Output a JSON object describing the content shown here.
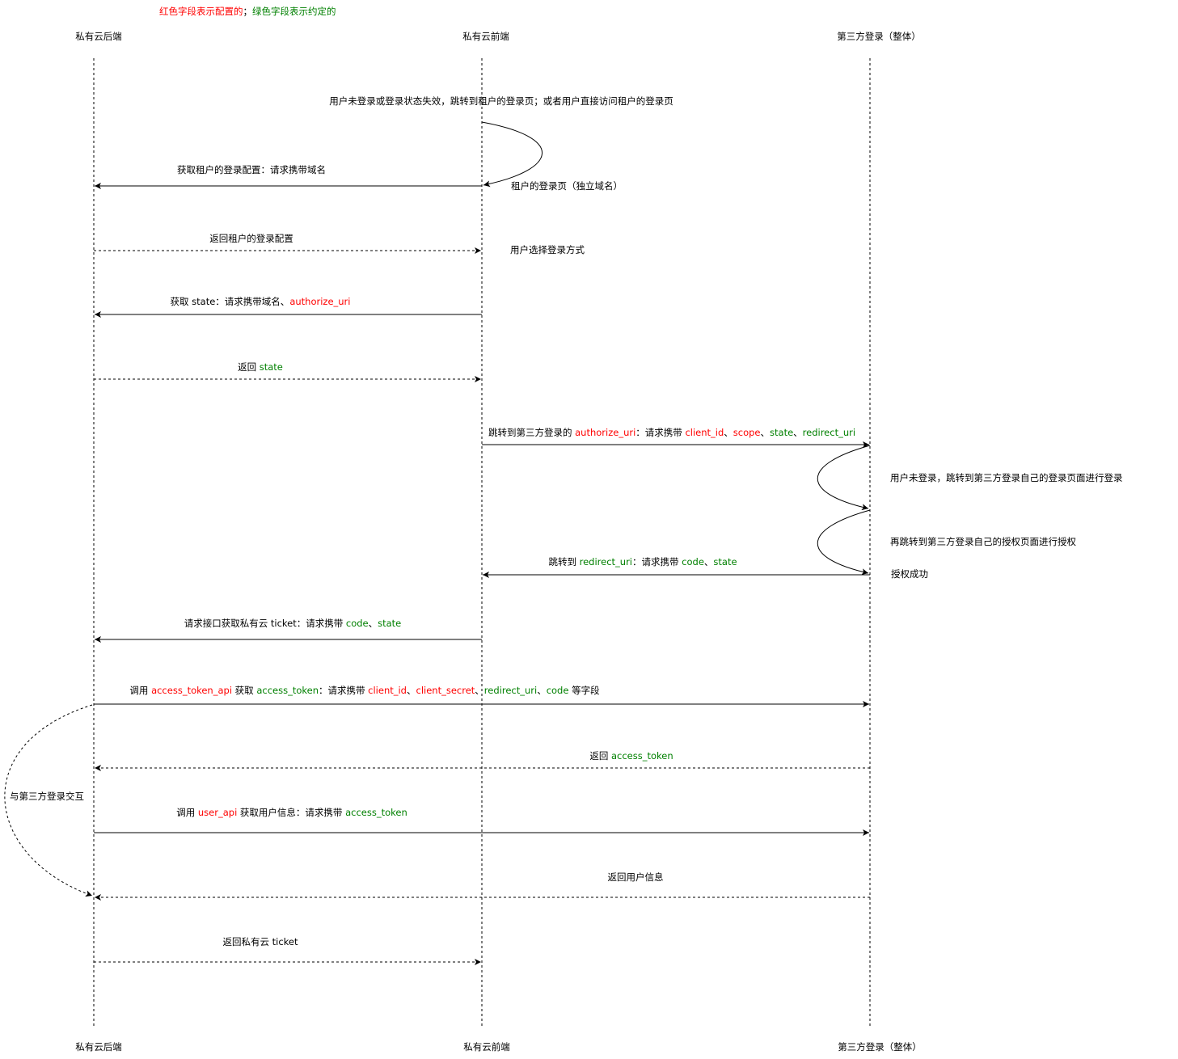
{
  "colors": {
    "config": "#ff0000",
    "agreed": "#008000",
    "default": "#000000"
  },
  "legend": [
    {
      "t": "红色字段表示配置的",
      "c": "config"
    },
    {
      "t": "；",
      "c": "default"
    },
    {
      "t": "绿色字段表示约定的",
      "c": "agreed"
    }
  ],
  "participants": [
    "私有云后端",
    "私有云前端",
    "第三方登录（整体）"
  ],
  "notes": {
    "entry": "用户未登录或登录状态失效，跳转到租户的登录页；或者用户直接访问租户的登录页",
    "tenant_login_page": "租户的登录页（独立域名）",
    "choose_method": "用户选择登录方式",
    "third_login": "用户未登录，跳转到第三方登录自己的登录页面进行登录",
    "third_authorize": "再跳转到第三方登录自己的授权页面进行授权",
    "auth_success": "授权成功",
    "interaction": "与第三方登录交互"
  },
  "messages": [
    {
      "from": 1,
      "to": 0,
      "dashed": false,
      "label": [
        {
          "t": "获取租户的登录配置：请求携带域名",
          "c": "default"
        }
      ]
    },
    {
      "from": 0,
      "to": 1,
      "dashed": true,
      "label": [
        {
          "t": "返回租户的登录配置",
          "c": "default"
        }
      ]
    },
    {
      "from": 1,
      "to": 0,
      "dashed": false,
      "label": [
        {
          "t": "获取 state：请求携带域名、",
          "c": "default"
        },
        {
          "t": "authorize_uri",
          "c": "config"
        }
      ]
    },
    {
      "from": 0,
      "to": 1,
      "dashed": true,
      "label": [
        {
          "t": "返回 ",
          "c": "default"
        },
        {
          "t": "state",
          "c": "agreed"
        }
      ]
    },
    {
      "from": 1,
      "to": 2,
      "dashed": false,
      "label": [
        {
          "t": "跳转到第三方登录的 ",
          "c": "default"
        },
        {
          "t": "authorize_uri",
          "c": "config"
        },
        {
          "t": "：请求携带 ",
          "c": "default"
        },
        {
          "t": "client_id",
          "c": "config"
        },
        {
          "t": "、",
          "c": "default"
        },
        {
          "t": "scope",
          "c": "config"
        },
        {
          "t": "、",
          "c": "default"
        },
        {
          "t": "state",
          "c": "agreed"
        },
        {
          "t": "、",
          "c": "default"
        },
        {
          "t": "redirect_uri",
          "c": "agreed"
        }
      ]
    },
    {
      "from": 2,
      "to": 1,
      "dashed": false,
      "label": [
        {
          "t": "跳转到 ",
          "c": "default"
        },
        {
          "t": "redirect_uri",
          "c": "agreed"
        },
        {
          "t": "：请求携带 ",
          "c": "default"
        },
        {
          "t": "code",
          "c": "agreed"
        },
        {
          "t": "、",
          "c": "default"
        },
        {
          "t": "state",
          "c": "agreed"
        }
      ]
    },
    {
      "from": 1,
      "to": 0,
      "dashed": false,
      "label": [
        {
          "t": "请求接口获取私有云 ticket：请求携带 ",
          "c": "default"
        },
        {
          "t": "code",
          "c": "agreed"
        },
        {
          "t": "、",
          "c": "default"
        },
        {
          "t": "state",
          "c": "agreed"
        }
      ]
    },
    {
      "from": 0,
      "to": 2,
      "dashed": false,
      "label": [
        {
          "t": "调用 ",
          "c": "default"
        },
        {
          "t": "access_token_api",
          "c": "config"
        },
        {
          "t": " 获取 ",
          "c": "default"
        },
        {
          "t": "access_token",
          "c": "agreed"
        },
        {
          "t": "：请求携带 ",
          "c": "default"
        },
        {
          "t": "client_id",
          "c": "config"
        },
        {
          "t": "、",
          "c": "default"
        },
        {
          "t": "client_secret",
          "c": "config"
        },
        {
          "t": "、",
          "c": "default"
        },
        {
          "t": "redirect_uri",
          "c": "agreed"
        },
        {
          "t": "、",
          "c": "default"
        },
        {
          "t": "code",
          "c": "agreed"
        },
        {
          "t": " 等字段",
          "c": "default"
        }
      ]
    },
    {
      "from": 2,
      "to": 0,
      "dashed": true,
      "label": [
        {
          "t": "返回 ",
          "c": "default"
        },
        {
          "t": "access_token",
          "c": "agreed"
        }
      ]
    },
    {
      "from": 0,
      "to": 2,
      "dashed": false,
      "label": [
        {
          "t": "调用 ",
          "c": "default"
        },
        {
          "t": "user_api",
          "c": "config"
        },
        {
          "t": " 获取用户信息：请求携带 ",
          "c": "default"
        },
        {
          "t": "access_token",
          "c": "agreed"
        }
      ]
    },
    {
      "from": 2,
      "to": 0,
      "dashed": true,
      "label": [
        {
          "t": "返回用户信息",
          "c": "default"
        }
      ]
    },
    {
      "from": 0,
      "to": 1,
      "dashed": true,
      "label": [
        {
          "t": "返回私有云 ticket",
          "c": "default"
        }
      ]
    }
  ]
}
